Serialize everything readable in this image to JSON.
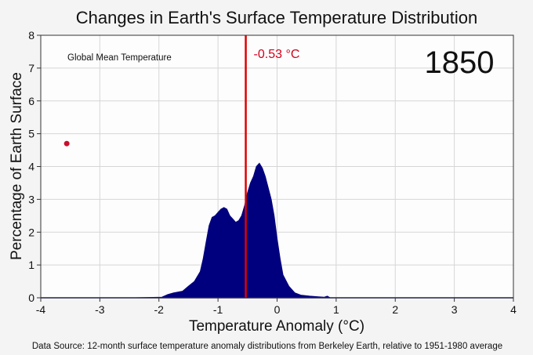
{
  "chart_data": {
    "type": "area",
    "title": "Changes in Earth's Surface Temperature Distribution",
    "xlabel": "Temperature Anomaly (°C)",
    "ylabel": "Percentage of Earth Surface",
    "xlim": [
      -4,
      4
    ],
    "ylim": [
      0,
      8
    ],
    "xticks": [
      "-4",
      "-3",
      "-2",
      "-1",
      "0",
      "1",
      "2",
      "3",
      "4"
    ],
    "yticks": [
      "0",
      "1",
      "2",
      "3",
      "4",
      "5",
      "6",
      "7",
      "8"
    ],
    "grid": true,
    "year_label": "1850",
    "legend_text": "Global Mean Temperature",
    "legend_marker": {
      "x": -3.56,
      "y": 4.7
    },
    "mean_value": -0.53,
    "mean_label": "-0.53 °C",
    "series": [
      {
        "x": [
          -2.4,
          -1.95,
          -1.85,
          -1.75,
          -1.6,
          -1.5,
          -1.4,
          -1.3,
          -1.25,
          -1.2,
          -1.15,
          -1.1,
          -1.05,
          -1.0,
          -0.95,
          -0.9,
          -0.85,
          -0.8,
          -0.75,
          -0.7,
          -0.65,
          -0.6,
          -0.55,
          -0.5,
          -0.45,
          -0.4,
          -0.35,
          -0.3,
          -0.25,
          -0.2,
          -0.15,
          -0.1,
          -0.05,
          0.0,
          0.05,
          0.1,
          0.2,
          0.3,
          0.4,
          0.55,
          0.7,
          0.8,
          0.85,
          0.9,
          1.2
        ],
        "y": [
          0,
          0.02,
          0.1,
          0.15,
          0.2,
          0.35,
          0.5,
          0.8,
          1.2,
          1.7,
          2.2,
          2.45,
          2.5,
          2.6,
          2.7,
          2.75,
          2.7,
          2.5,
          2.4,
          2.3,
          2.35,
          2.5,
          2.8,
          3.2,
          3.5,
          3.7,
          4.0,
          4.1,
          3.95,
          3.7,
          3.35,
          3.0,
          2.5,
          1.8,
          1.2,
          0.7,
          0.35,
          0.15,
          0.08,
          0.05,
          0.03,
          0.02,
          0.05,
          0,
          0
        ],
        "color": "#00007f"
      }
    ],
    "colors": {
      "fill": "#00007f",
      "mean_line": "#e00000",
      "marker": "#c8102e"
    }
  },
  "footer": {
    "source": "Data Source: 12-month surface temperature anomaly distributions from Berkeley Earth, relative to 1951-1980 average"
  }
}
